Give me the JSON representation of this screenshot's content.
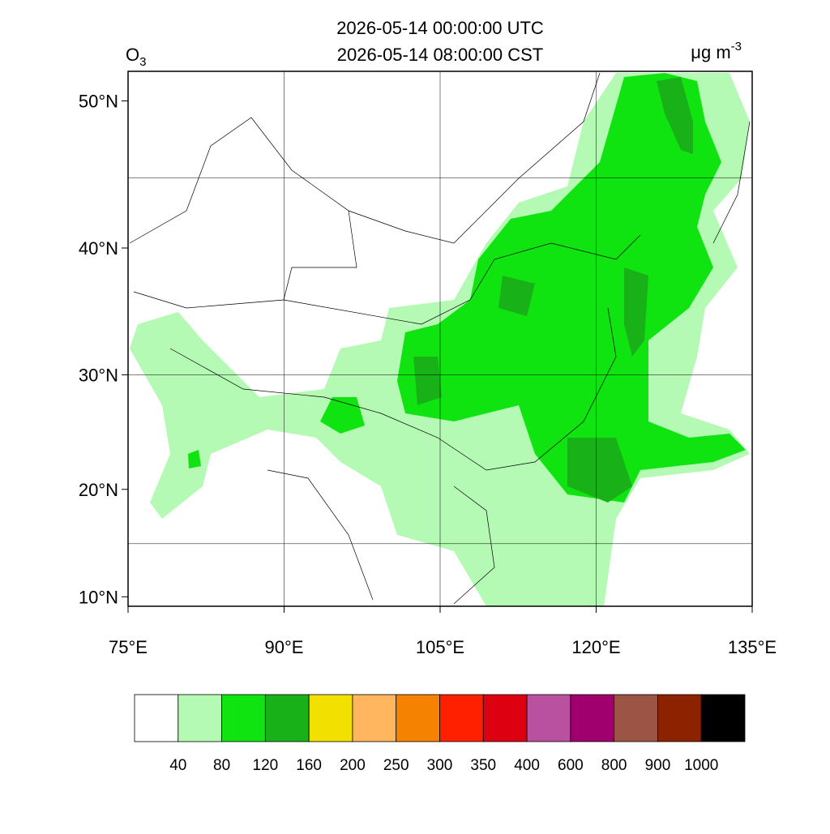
{
  "title": [
    "2026-05-14 00:00:00 UTC",
    "2026-05-14 08:00:00 CST"
  ],
  "variable": {
    "name": "O",
    "subscript": "3"
  },
  "units": {
    "text": "μg m",
    "superscript": "-3"
  },
  "map": {
    "lon_lim": [
      75,
      135
    ],
    "lat_lim": [
      9.1,
      51.8
    ],
    "lon_ticks": [
      {
        "value": 75,
        "label": "75°E"
      },
      {
        "value": 90,
        "label": "90°E"
      },
      {
        "value": 105,
        "label": "105°E"
      },
      {
        "value": 120,
        "label": "120°E"
      },
      {
        "value": 135,
        "label": "135°E"
      }
    ],
    "lat_ticks": [
      {
        "value": 10,
        "label": "10°N"
      },
      {
        "value": 20,
        "label": "20°N"
      },
      {
        "value": 30,
        "label": "30°N"
      },
      {
        "value": 40,
        "label": "40°N"
      },
      {
        "value": 50,
        "label": "50°N"
      }
    ],
    "lon_grid": [
      90,
      105,
      120
    ],
    "lat_grid": [
      15,
      30,
      45
    ]
  },
  "colorbar": {
    "levels": [
      40,
      80,
      120,
      160,
      200,
      250,
      300,
      350,
      400,
      600,
      800,
      900,
      1000
    ],
    "colors": [
      "#ffffff",
      "#b4f9b4",
      "#10e410",
      "#18b218",
      "#f2e000",
      "#ffb65e",
      "#f58200",
      "#ff2000",
      "#dc0010",
      "#ba50a0",
      "#a0006e",
      "#9c5444",
      "#8c2200",
      "#000000"
    ]
  }
}
